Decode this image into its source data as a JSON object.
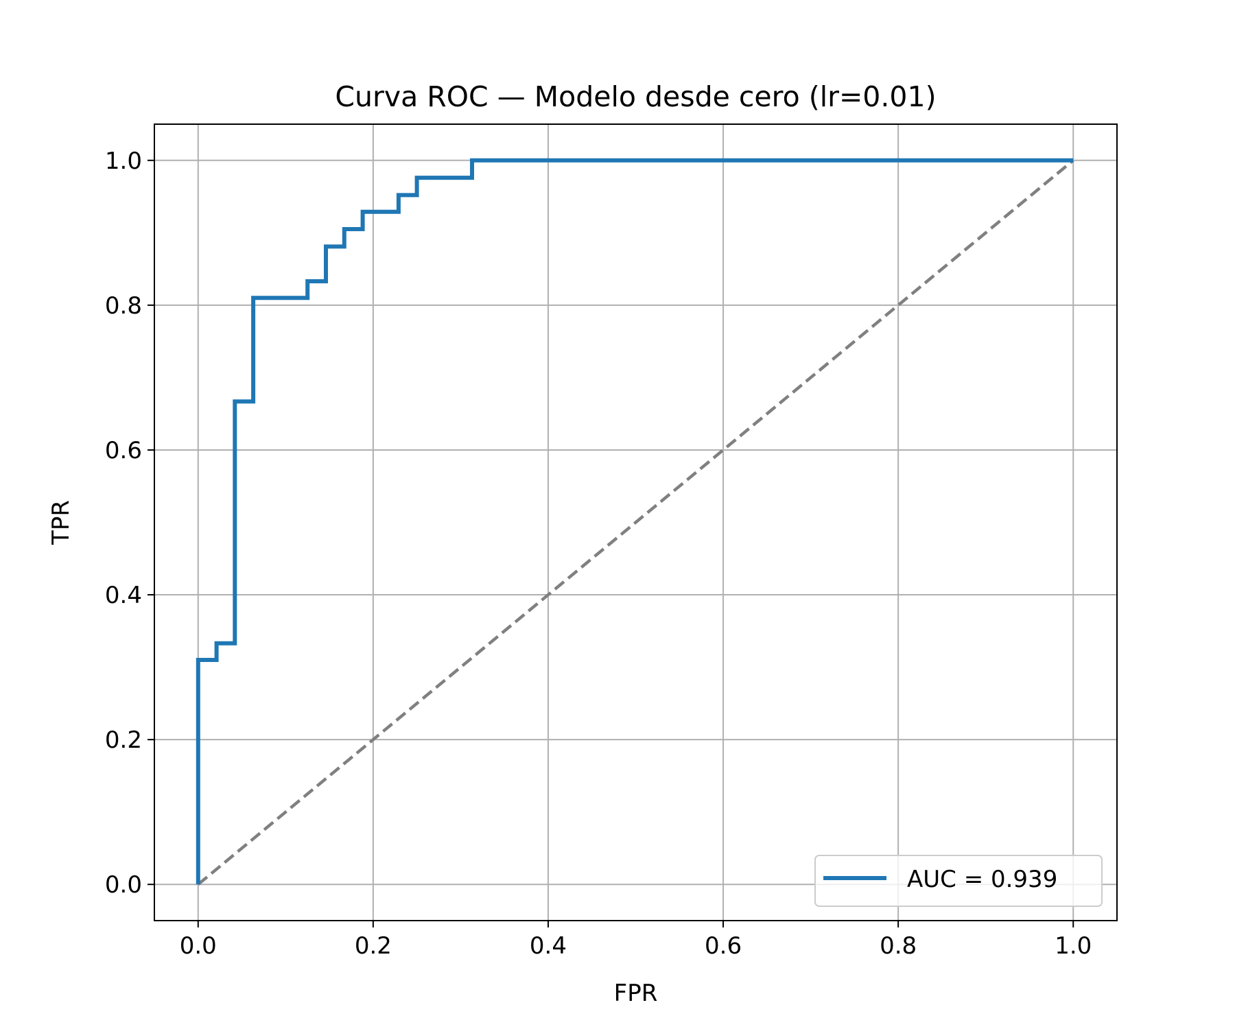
{
  "chart_data": {
    "type": "line",
    "title": "Curva ROC — Modelo desde cero (lr=0.01)",
    "xlabel": "FPR",
    "ylabel": "TPR",
    "xlim": [
      -0.05,
      1.05
    ],
    "ylim": [
      -0.05,
      1.05
    ],
    "xticks": [
      "0.0",
      "0.2",
      "0.4",
      "0.6",
      "0.8",
      "1.0"
    ],
    "yticks": [
      "0.0",
      "0.2",
      "0.4",
      "0.6",
      "0.8",
      "1.0"
    ],
    "grid": true,
    "legend_position": "lower right",
    "series": [
      {
        "name": "AUC = 0.939",
        "color": "#1f77b4",
        "style": "solid",
        "x": [
          0.0,
          0.0,
          0.021,
          0.021,
          0.042,
          0.042,
          0.063,
          0.063,
          0.125,
          0.125,
          0.146,
          0.146,
          0.167,
          0.167,
          0.188,
          0.188,
          0.229,
          0.229,
          0.25,
          0.25,
          0.313,
          0.313,
          1.0
        ],
        "y": [
          0.0,
          0.31,
          0.31,
          0.333,
          0.333,
          0.667,
          0.667,
          0.81,
          0.81,
          0.833,
          0.833,
          0.881,
          0.881,
          0.905,
          0.905,
          0.929,
          0.929,
          0.952,
          0.952,
          0.976,
          0.976,
          1.0,
          1.0
        ]
      },
      {
        "color": "#808080",
        "style": "dashed",
        "x": [
          0.0,
          1.0
        ],
        "y": [
          0.0,
          1.0
        ]
      }
    ]
  }
}
